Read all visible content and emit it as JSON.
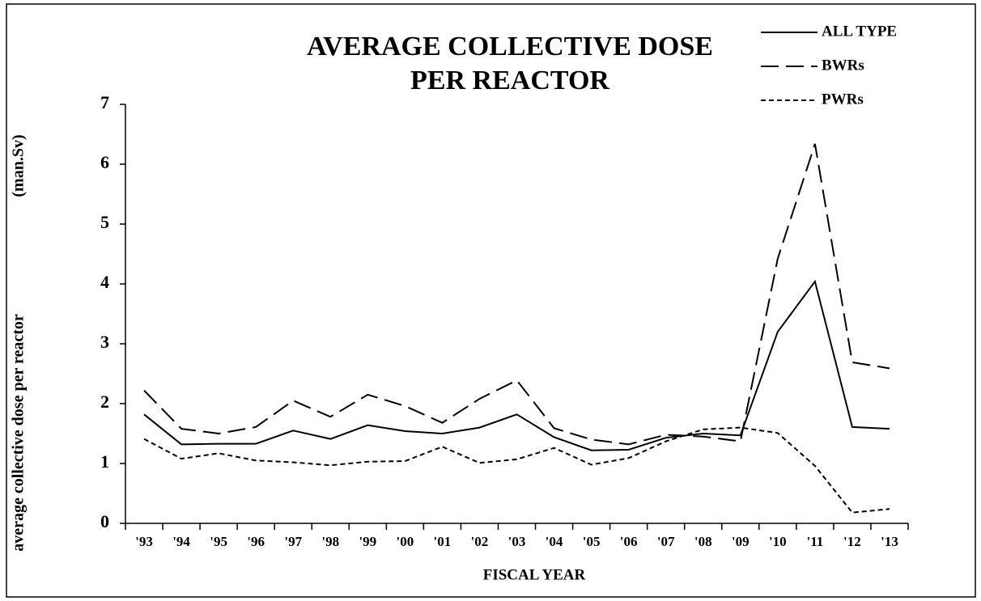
{
  "chart_data": {
    "type": "line",
    "title": [
      "AVERAGE COLLECTIVE DOSE",
      "PER REACTOR"
    ],
    "x_label": "FISCAL YEAR",
    "y_label": "average collective dose per reactor",
    "y_unit": "(man.Sv)",
    "categories": [
      "'93",
      "'94",
      "'95",
      "'96",
      "'97",
      "'98",
      "'99",
      "'00",
      "'01",
      "'02",
      "'03",
      "'04",
      "'05",
      "'06",
      "'07",
      "'08",
      "'09",
      "'10",
      "'11",
      "'12",
      "'13"
    ],
    "series": [
      {
        "name": "ALL TYPE",
        "color": "#000000",
        "style": "solid",
        "values": [
          1.82,
          1.32,
          1.33,
          1.33,
          1.55,
          1.41,
          1.64,
          1.54,
          1.5,
          1.6,
          1.82,
          1.44,
          1.22,
          1.23,
          1.43,
          1.5,
          1.47,
          3.2,
          4.04,
          1.61,
          1.58
        ]
      },
      {
        "name": "BWRs",
        "color": "#000000",
        "style": "dashed",
        "values": [
          2.22,
          1.58,
          1.5,
          1.61,
          2.05,
          1.78,
          2.15,
          1.96,
          1.68,
          2.08,
          2.39,
          1.59,
          1.4,
          1.32,
          1.48,
          1.45,
          1.37,
          4.42,
          6.34,
          2.69,
          2.59
        ]
      },
      {
        "name": "PWRs",
        "color": "#000000",
        "style": "dotted",
        "values": [
          1.41,
          1.08,
          1.17,
          1.05,
          1.02,
          0.97,
          1.03,
          1.04,
          1.28,
          1.01,
          1.07,
          1.26,
          0.98,
          1.09,
          1.37,
          1.57,
          1.6,
          1.51,
          0.96,
          0.18,
          0.24
        ]
      }
    ],
    "ylim": [
      0,
      7
    ],
    "yticks": [
      0,
      1,
      2,
      3,
      4,
      5,
      6,
      7
    ],
    "grid": false,
    "legend": "top-right"
  }
}
